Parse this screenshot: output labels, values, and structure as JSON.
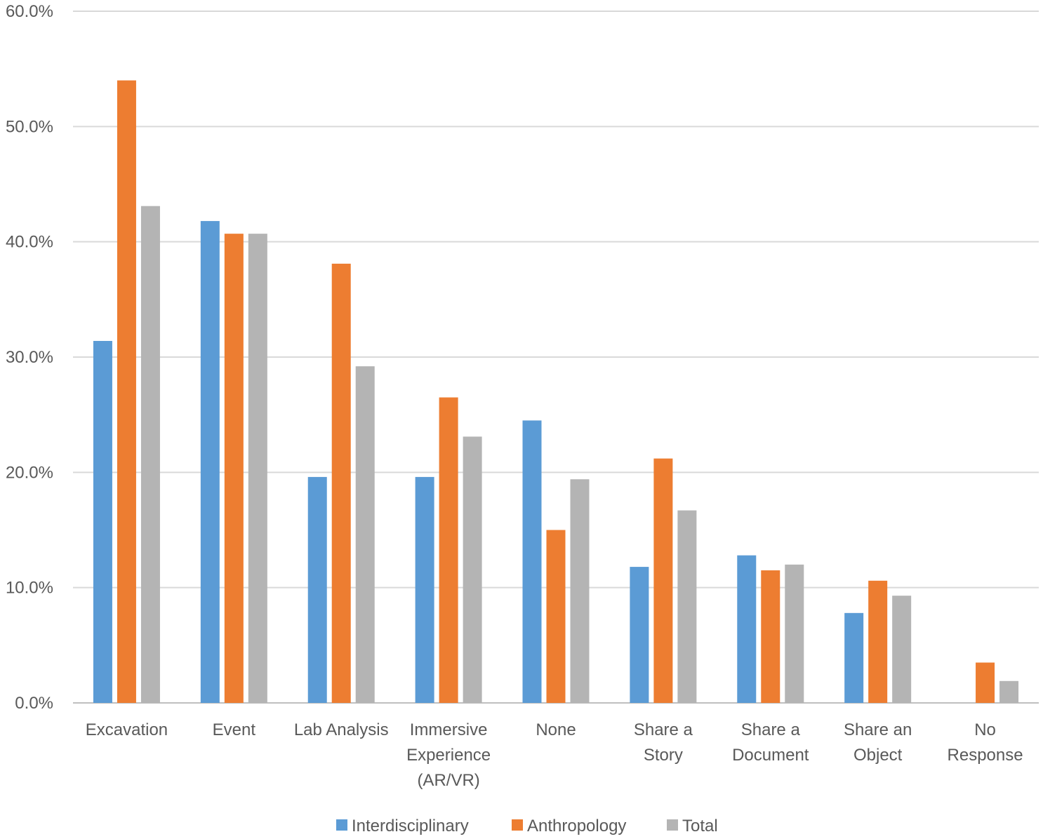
{
  "chart_data": {
    "type": "bar",
    "title": "",
    "xlabel": "",
    "ylabel": "",
    "ylim": [
      0,
      60
    ],
    "yticks": [
      "0.0%",
      "10.0%",
      "20.0%",
      "30.0%",
      "40.0%",
      "50.0%",
      "60.0%"
    ],
    "ytick_values": [
      0,
      10,
      20,
      30,
      40,
      50,
      60
    ],
    "grid": true,
    "legend_position": "bottom",
    "categories": [
      [
        "Excavation"
      ],
      [
        "Event"
      ],
      [
        "Lab Analysis"
      ],
      [
        "Immersive",
        "Experience",
        "(AR/VR)"
      ],
      [
        "None"
      ],
      [
        "Share a",
        "Story"
      ],
      [
        "Share a",
        "Document"
      ],
      [
        "Share an",
        "Object"
      ],
      [
        "No",
        "Response"
      ]
    ],
    "series": [
      {
        "name": "Interdisciplinary",
        "color": "#5B9BD5",
        "values": [
          31.4,
          41.8,
          19.6,
          19.6,
          24.5,
          11.8,
          12.8,
          7.8,
          0.0
        ]
      },
      {
        "name": "Anthropology",
        "color": "#ED7D31",
        "values": [
          54.0,
          40.7,
          38.1,
          26.5,
          15.0,
          21.2,
          11.5,
          10.6,
          3.5
        ]
      },
      {
        "name": "Total",
        "color": "#B4B4B4",
        "values": [
          43.1,
          40.7,
          29.2,
          23.1,
          19.4,
          16.7,
          12.0,
          9.3,
          1.9
        ]
      }
    ]
  }
}
